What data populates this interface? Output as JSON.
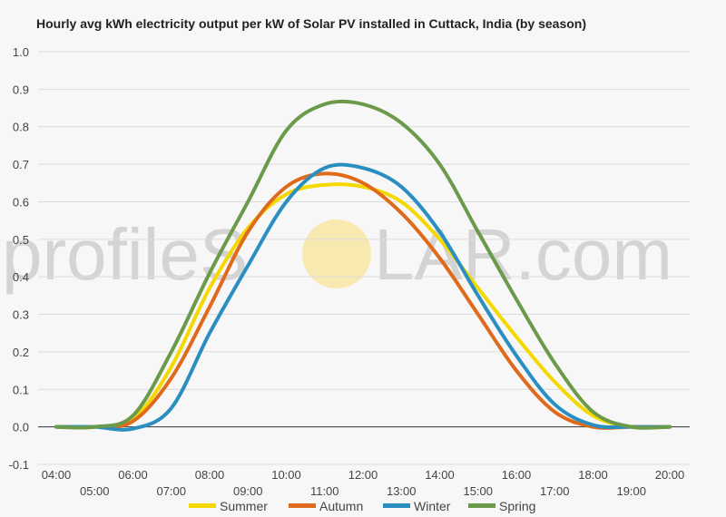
{
  "chart_data": {
    "type": "line",
    "title": "Hourly avg kWh electricity output per kW of Solar PV installed in Cuttack, India (by season)",
    "xlabel": "",
    "ylabel": "",
    "ylim": [
      -0.1,
      1.0
    ],
    "yticks": [
      "1.0",
      "0.9",
      "0.8",
      "0.7",
      "0.6",
      "0.5",
      "0.4",
      "0.3",
      "0.2",
      "0.1",
      "0.0",
      "-0.1"
    ],
    "categories": [
      "04:00",
      "05:00",
      "06:00",
      "07:00",
      "08:00",
      "09:00",
      "10:00",
      "11:00",
      "12:00",
      "13:00",
      "14:00",
      "15:00",
      "16:00",
      "17:00",
      "18:00",
      "19:00",
      "20:00"
    ],
    "grid": true,
    "legend_position": "bottom",
    "series": [
      {
        "name": "Summer",
        "color": "#f5d800",
        "values": [
          0.0,
          0.0,
          0.02,
          0.16,
          0.37,
          0.53,
          0.62,
          0.645,
          0.64,
          0.6,
          0.5,
          0.37,
          0.24,
          0.12,
          0.03,
          0.0,
          0.0
        ]
      },
      {
        "name": "Autumn",
        "color": "#e06a1b",
        "values": [
          0.0,
          0.0,
          0.015,
          0.13,
          0.32,
          0.52,
          0.64,
          0.675,
          0.65,
          0.57,
          0.45,
          0.3,
          0.15,
          0.04,
          0.0,
          0.0,
          0.0
        ]
      },
      {
        "name": "Winter",
        "color": "#2a8fc0",
        "values": [
          0.0,
          0.0,
          -0.005,
          0.05,
          0.25,
          0.43,
          0.6,
          0.69,
          0.69,
          0.64,
          0.52,
          0.35,
          0.19,
          0.06,
          0.005,
          0.0,
          0.0
        ]
      },
      {
        "name": "Spring",
        "color": "#6a9a4a",
        "values": [
          0.0,
          0.0,
          0.03,
          0.2,
          0.41,
          0.6,
          0.79,
          0.86,
          0.86,
          0.81,
          0.7,
          0.52,
          0.34,
          0.17,
          0.04,
          0.0,
          0.0
        ]
      }
    ]
  },
  "watermark": {
    "text_left": "profileS",
    "text_right": "LAR.com",
    "sun_color": "#f8e9b0"
  }
}
